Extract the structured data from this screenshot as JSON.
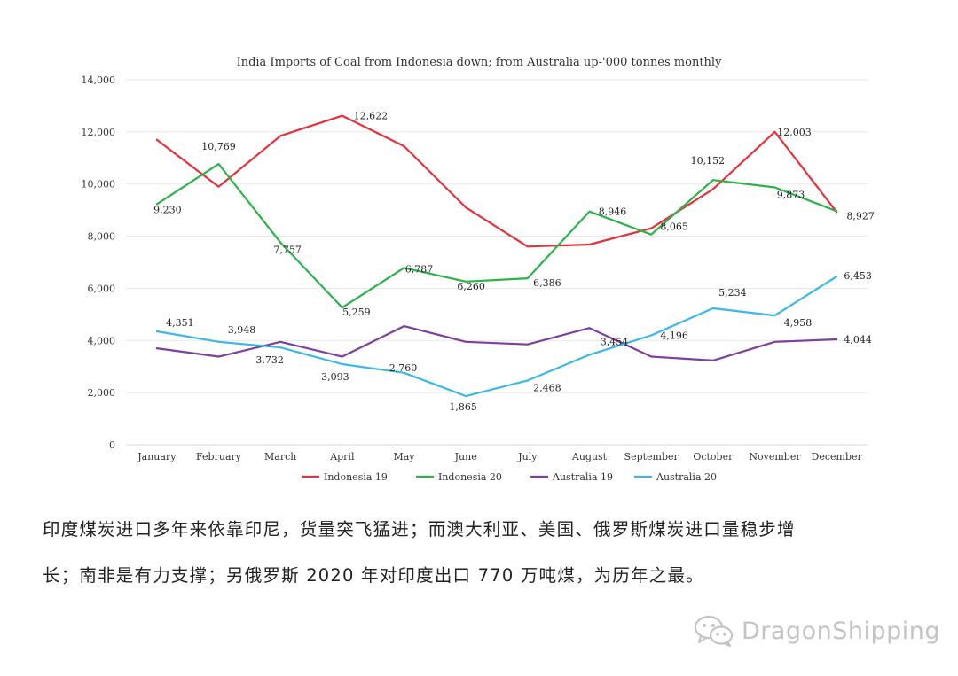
{
  "chart_data": {
    "type": "line",
    "title": "India Imports of Coal from Indonesia down; from Australia up-'000 tonnes monthly",
    "xlabel": "",
    "ylabel": "",
    "categories": [
      "January",
      "February",
      "March",
      "April",
      "May",
      "June",
      "July",
      "August",
      "September",
      "October",
      "November",
      "December"
    ],
    "ylim": [
      0,
      14000
    ],
    "yticks": [
      0,
      2000,
      4000,
      6000,
      8000,
      10000,
      12000,
      14000
    ],
    "ytick_labels": [
      "0",
      "2,000",
      "4,000",
      "6,000",
      "8,000",
      "10,000",
      "12,000",
      "14,000"
    ],
    "grid": true,
    "legend_position": "bottom",
    "series": [
      {
        "name": "Indonesia 19",
        "color": "#e8303a",
        "values": [
          11700,
          9900,
          11850,
          12622,
          11450,
          9100,
          7600,
          7680,
          8300,
          9800,
          12003,
          8927
        ],
        "labels": [
          null,
          null,
          null,
          "12,622",
          null,
          null,
          null,
          null,
          null,
          null,
          "12,003",
          "8,927"
        ]
      },
      {
        "name": "Indonesia 20",
        "color": "#2bb34a",
        "values": [
          9230,
          10769,
          7757,
          5259,
          6787,
          6260,
          6386,
          8946,
          8065,
          10152,
          9873,
          8960
        ],
        "labels": [
          "9,230",
          "10,769",
          "7,757",
          "5,259",
          "6,787",
          "6,260",
          "6,386",
          "8,946",
          "8,065",
          "10,152",
          "9,873",
          null
        ]
      },
      {
        "name": "Australia 19",
        "color": "#7f3f9e",
        "values": [
          3700,
          3380,
          3950,
          3380,
          4550,
          3950,
          3850,
          4480,
          3380,
          3230,
          3950,
          4044
        ],
        "labels": [
          null,
          null,
          null,
          null,
          null,
          null,
          null,
          null,
          null,
          null,
          null,
          "4,044"
        ]
      },
      {
        "name": "Australia 20",
        "color": "#3cb8e8",
        "values": [
          4351,
          3948,
          3732,
          3093,
          2760,
          1865,
          2468,
          3454,
          4196,
          5234,
          4958,
          6453
        ],
        "labels": [
          "4,351",
          "3,948",
          "3,732",
          "3,093",
          "2,760",
          "1,865",
          "2,468",
          "3,454",
          "4,196",
          "5,234",
          "4,958",
          "6,453"
        ]
      }
    ]
  },
  "caption": {
    "line1": "印度煤炭进口多年来依靠印尼，货量突飞猛进；而澳大利亚、美国、俄罗斯煤炭进口量稳步增",
    "line2": "长；南非是有力支撑；另俄罗斯 2020 年对印度出口 770 万吨煤，为历年之最。"
  },
  "watermark": {
    "text": "DragonShipping",
    "icon": "wechat-icon",
    "color": "#c4c4c4"
  }
}
